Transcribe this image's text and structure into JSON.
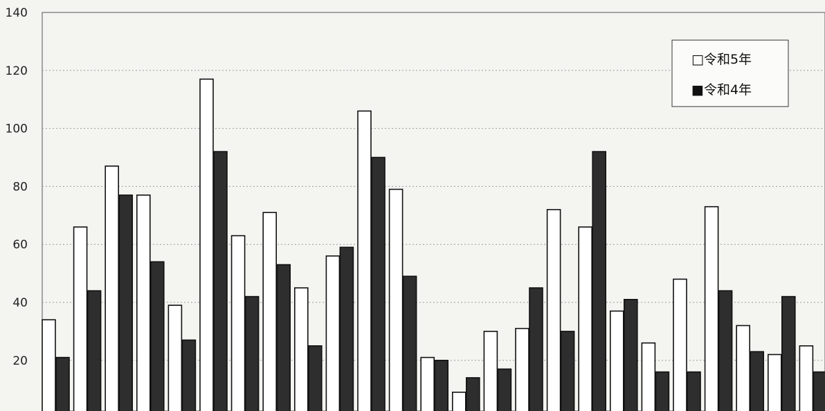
{
  "chart_data": {
    "type": "bar",
    "title": "",
    "xlabel": "",
    "ylabel": "",
    "ylim": [
      0,
      140
    ],
    "yticks": [
      20,
      40,
      60,
      80,
      100,
      120,
      140
    ],
    "grid": true,
    "legend_position": "top-right",
    "series": [
      {
        "name": "令和5年",
        "color": "#ffffff",
        "values": [
          34,
          66,
          87,
          77,
          39,
          117,
          63,
          71,
          45,
          56,
          106,
          79,
          21,
          9,
          30,
          31,
          72,
          66,
          37,
          26,
          48,
          73,
          32,
          22,
          25
        ]
      },
      {
        "name": "令和4年",
        "color": "#2e2e2e",
        "values": [
          21,
          44,
          77,
          54,
          27,
          92,
          42,
          53,
          25,
          59,
          90,
          49,
          20,
          14,
          17,
          45,
          30,
          92,
          41,
          16,
          16,
          44,
          23,
          42,
          16
        ]
      }
    ]
  },
  "legend": {
    "items": [
      {
        "marker": "□",
        "label": "令和5年"
      },
      {
        "marker": "■",
        "label": "令和4年"
      }
    ]
  }
}
